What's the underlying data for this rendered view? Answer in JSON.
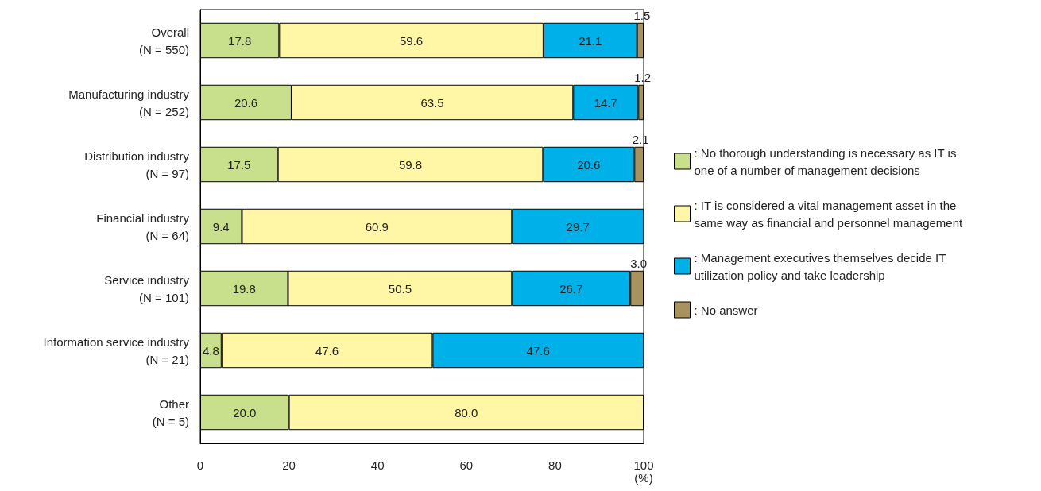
{
  "chart_data": {
    "type": "bar",
    "orientation": "horizontal",
    "stacked": true,
    "xlabel": "(%)",
    "categories": [
      "Overall\n(N = 550)",
      "Manufacturing industry\n(N = 252)",
      "Distribution industry\n(N = 97)",
      "Financial industry\n(N = 64)",
      "Service industry\n(N = 101)",
      "Information service industry\n(N = 21)",
      "Other\n(N = 5)"
    ],
    "series": [
      {
        "name": ": No thorough understanding is necessary as IT is\none of a number of management decisions",
        "color": "#c8e08c",
        "values": [
          17.8,
          20.6,
          17.5,
          9.4,
          19.8,
          4.8,
          20.0
        ],
        "value_labels": [
          "17.8",
          "20.6",
          "17.5",
          "9.4",
          "19.8",
          "4.8",
          "20.0"
        ]
      },
      {
        "name": ": IT is considered a vital management asset in the\nsame way as financial and personnel management",
        "color": "#fff7a6",
        "values": [
          59.6,
          63.5,
          59.8,
          60.9,
          50.5,
          47.6,
          80.0
        ],
        "value_labels": [
          "59.6",
          "63.5",
          "59.8",
          "60.9",
          "50.5",
          "47.6",
          "80.0"
        ]
      },
      {
        "name": ": Management executives themselves decide IT\nutilization policy and take leadership",
        "color": "#00b0e8",
        "values": [
          21.1,
          14.7,
          20.6,
          29.7,
          26.7,
          47.6,
          null
        ],
        "value_labels": [
          "21.1",
          "14.7",
          "20.6",
          "29.7",
          "26.7",
          "47.6",
          null
        ]
      },
      {
        "name": ": No answer",
        "color": "#a8925e",
        "values": [
          1.5,
          1.2,
          2.1,
          null,
          3.0,
          null,
          null
        ],
        "value_labels": [
          "1.5",
          "1.2",
          "2.1",
          null,
          "3.0",
          null,
          null
        ]
      }
    ],
    "xlim": [
      0,
      100
    ],
    "xticks": [
      0,
      20,
      40,
      60,
      80,
      100
    ],
    "grid": false,
    "legend": "right"
  }
}
